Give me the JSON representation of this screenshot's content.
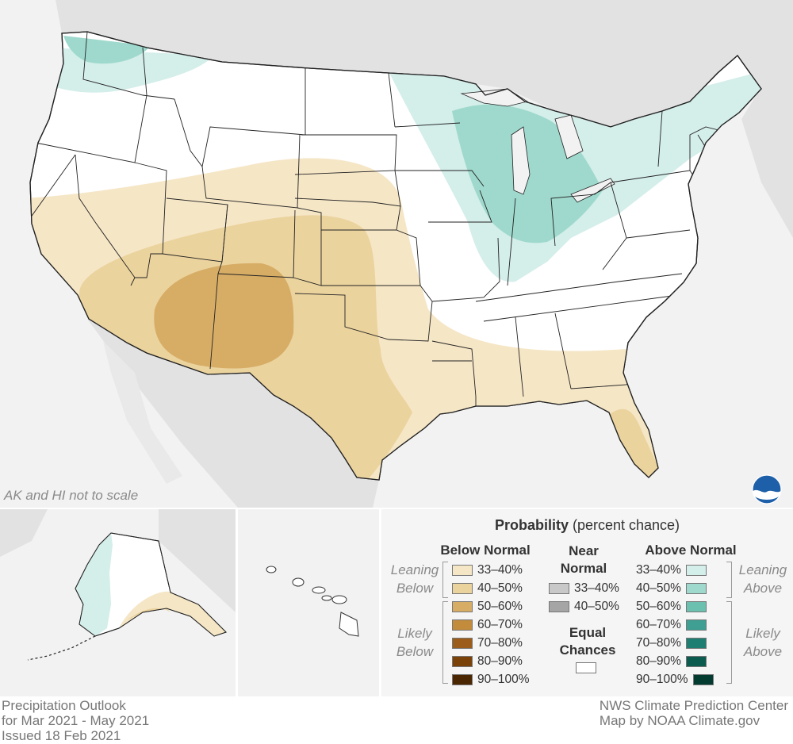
{
  "map": {
    "scale_note": "AK and HI not to scale",
    "logo_name": "noaa-logo",
    "colors": {
      "background": "#f2f2f2",
      "land_gray": "#e2e2e2",
      "equal_chances": "#ffffff",
      "below_33_40": "#f5e6c6",
      "below_40_50": "#ebd39e",
      "below_50_60": "#d7ad66",
      "above_33_40": "#d4eeea",
      "above_40_50": "#9fd9cd",
      "state_border": "#222222"
    }
  },
  "legend": {
    "title_bold": "Probability",
    "title_rest": " (percent chance)",
    "below": {
      "heading": "Below Normal",
      "leaning_label_1": "Leaning",
      "leaning_label_2": "Below",
      "likely_label_1": "Likely",
      "likely_label_2": "Below",
      "items": [
        {
          "label": "33–40%",
          "color": "#f5e6c6"
        },
        {
          "label": "40–50%",
          "color": "#ebd39e"
        },
        {
          "label": "50–60%",
          "color": "#d7ad66"
        },
        {
          "label": "60–70%",
          "color": "#c38c3c"
        },
        {
          "label": "70–80%",
          "color": "#9d5d1a"
        },
        {
          "label": "80–90%",
          "color": "#7a4209"
        },
        {
          "label": "90–100%",
          "color": "#4a2603"
        }
      ]
    },
    "near": {
      "heading_1": "Near",
      "heading_2": "Normal",
      "items": [
        {
          "label": "33–40%",
          "color": "#c8c8c8"
        },
        {
          "label": "40–50%",
          "color": "#a5a5a5"
        }
      ],
      "equal_1": "Equal",
      "equal_2": "Chances"
    },
    "above": {
      "heading": "Above Normal",
      "leaning_label_1": "Leaning",
      "leaning_label_2": "Above",
      "likely_label_1": "Likely",
      "likely_label_2": "Above",
      "items": [
        {
          "label": "33–40%",
          "color": "#d4eeea"
        },
        {
          "label": "40–50%",
          "color": "#9fd9cd"
        },
        {
          "label": "50–60%",
          "color": "#6cc0b0"
        },
        {
          "label": "60–70%",
          "color": "#3e9f92"
        },
        {
          "label": "70–80%",
          "color": "#1f7e72"
        },
        {
          "label": "80–90%",
          "color": "#0b5b4f"
        },
        {
          "label": "90–100%",
          "color": "#033b31"
        }
      ]
    }
  },
  "footer": {
    "left_1": "Precipitation Outlook",
    "left_2": "for Mar 2021 - May 2021",
    "left_3": "Issued 18 Feb 2021",
    "right_1": "NWS Climate Prediction Center",
    "right_2": "Map by NOAA Climate.gov"
  }
}
